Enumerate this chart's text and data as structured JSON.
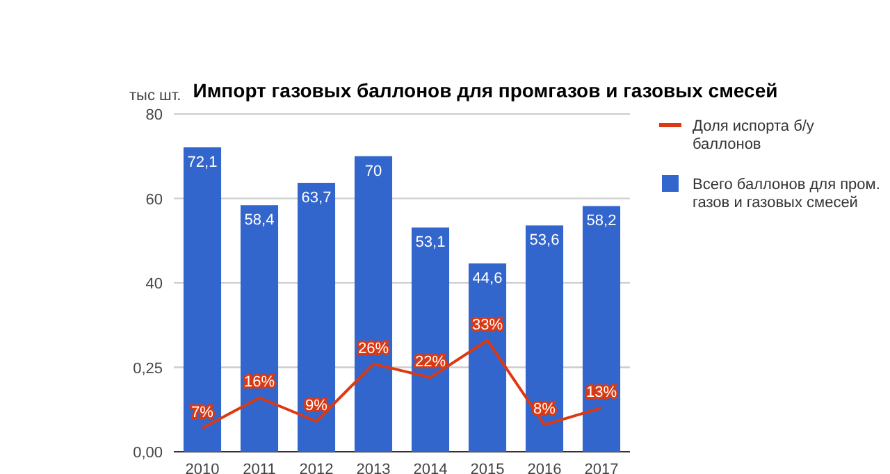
{
  "chart_data": {
    "type": "bar",
    "title": "Импорт газовых баллонов для промгазов и газовых смесей",
    "ylabel": "тыс шт.",
    "categories": [
      "2010",
      "2011",
      "2012",
      "2013",
      "2014",
      "2015",
      "2016",
      "2017"
    ],
    "series": [
      {
        "name": "Всего баллонов для пром. газов и газовых смесей",
        "color": "#3366cc",
        "values": [
          72.1,
          58.4,
          63.7,
          70,
          53.1,
          44.6,
          53.6,
          58.2
        ],
        "value_labels": [
          "72,1",
          "58,4",
          "63,7",
          "70",
          "53,1",
          "44,6",
          "53,6",
          "58,2"
        ]
      },
      {
        "name": "Доля испорта б/у баллонов",
        "type": "line",
        "axis": "y2",
        "color": "#dc3912",
        "values": [
          0.07,
          0.16,
          0.09,
          0.26,
          0.22,
          0.33,
          0.08,
          0.13
        ],
        "value_labels": [
          "7%",
          "16%",
          "9%",
          "26%",
          "22%",
          "33%",
          "8%",
          "13%"
        ]
      }
    ],
    "ylim": [
      0,
      80
    ],
    "yticks": [
      {
        "value": 0,
        "label": null
      },
      {
        "value": 20,
        "label": null
      },
      40,
      60,
      80
    ],
    "y2lim": [
      0,
      1
    ],
    "y2ticks": [
      {
        "value": 0,
        "label": "0,00"
      },
      {
        "value": 0.25,
        "label": "0,25"
      }
    ],
    "grid": "y",
    "legend": "right"
  }
}
